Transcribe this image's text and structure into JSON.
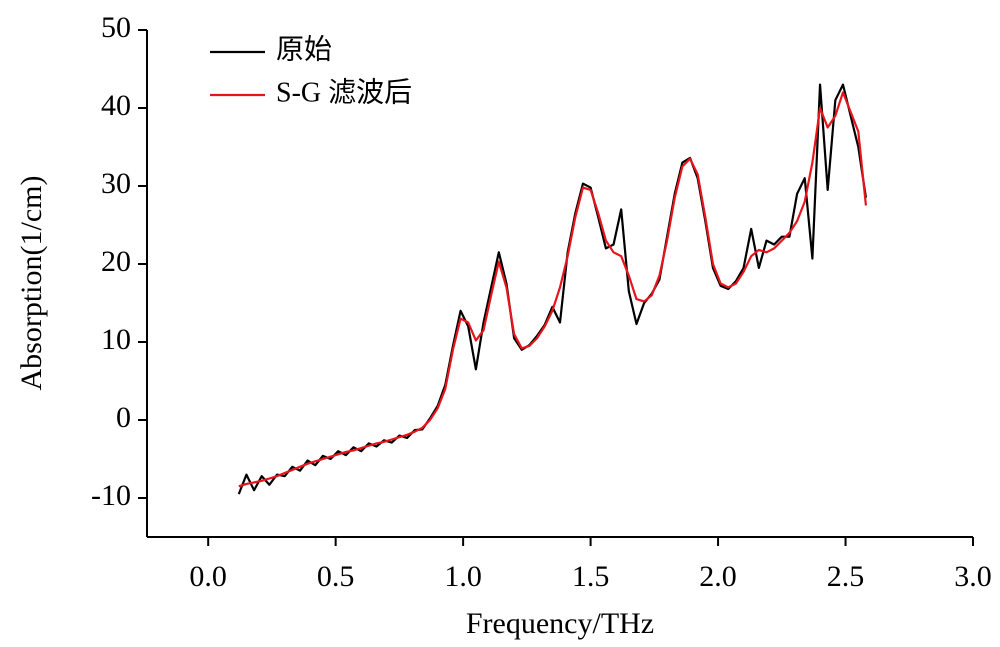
{
  "chart_data": {
    "type": "line",
    "xlabel": "Frequency/THz",
    "ylabel": "Absorption(1/cm)",
    "x": [
      0.12,
      0.15,
      0.18,
      0.21,
      0.24,
      0.27,
      0.3,
      0.33,
      0.36,
      0.39,
      0.42,
      0.45,
      0.48,
      0.51,
      0.54,
      0.57,
      0.6,
      0.63,
      0.66,
      0.69,
      0.72,
      0.75,
      0.78,
      0.81,
      0.84,
      0.87,
      0.9,
      0.93,
      0.96,
      0.99,
      1.02,
      1.05,
      1.08,
      1.11,
      1.14,
      1.17,
      1.2,
      1.23,
      1.26,
      1.29,
      1.32,
      1.35,
      1.38,
      1.41,
      1.44,
      1.47,
      1.5,
      1.53,
      1.56,
      1.59,
      1.62,
      1.65,
      1.68,
      1.71,
      1.74,
      1.77,
      1.8,
      1.83,
      1.86,
      1.89,
      1.92,
      1.95,
      1.98,
      2.01,
      2.04,
      2.07,
      2.1,
      2.13,
      2.16,
      2.19,
      2.22,
      2.25,
      2.28,
      2.31,
      2.34,
      2.37,
      2.4,
      2.43,
      2.46,
      2.49,
      2.52,
      2.55,
      2.58
    ],
    "series": [
      {
        "name": "原始",
        "color": "#000000",
        "values": [
          -9.5,
          -7.0,
          -9.0,
          -7.2,
          -8.3,
          -7.0,
          -7.2,
          -6.0,
          -6.5,
          -5.2,
          -5.8,
          -4.6,
          -5.0,
          -4.0,
          -4.5,
          -3.5,
          -4.0,
          -3.0,
          -3.4,
          -2.6,
          -2.9,
          -2.0,
          -2.3,
          -1.3,
          -1.2,
          0.2,
          1.8,
          4.5,
          9.5,
          14.0,
          12.0,
          6.5,
          12.5,
          17.0,
          21.5,
          17.5,
          10.5,
          9.0,
          9.6,
          10.8,
          12.2,
          14.5,
          12.5,
          21.5,
          26.5,
          30.3,
          29.8,
          26.0,
          22.0,
          22.5,
          27.0,
          16.5,
          12.3,
          15.0,
          16.2,
          18.0,
          23.5,
          29.0,
          33.0,
          33.6,
          31.0,
          25.5,
          19.5,
          17.2,
          16.8,
          17.8,
          19.5,
          24.5,
          19.5,
          23.0,
          22.5,
          23.5,
          23.5,
          29.0,
          31.0,
          20.7,
          43.0,
          29.5,
          41.0,
          43.0,
          39.0,
          35.0,
          28.5
        ]
      },
      {
        "name": "S-G 滤波后",
        "color": "#e8141c",
        "values": [
          -8.5,
          -8.2,
          -8.0,
          -7.8,
          -7.5,
          -7.2,
          -6.8,
          -6.4,
          -6.0,
          -5.6,
          -5.3,
          -5.0,
          -4.7,
          -4.4,
          -4.1,
          -3.9,
          -3.6,
          -3.3,
          -3.0,
          -2.8,
          -2.5,
          -2.2,
          -1.9,
          -1.5,
          -1.0,
          0.0,
          1.5,
          4.0,
          9.0,
          13.0,
          12.5,
          10.2,
          11.5,
          16.0,
          20.3,
          17.0,
          11.0,
          9.2,
          9.5,
          10.5,
          12.0,
          14.0,
          17.0,
          21.0,
          26.0,
          29.8,
          29.5,
          26.5,
          23.0,
          21.5,
          21.0,
          18.5,
          15.5,
          15.2,
          16.0,
          18.5,
          23.0,
          28.5,
          32.5,
          33.5,
          31.5,
          26.0,
          20.0,
          17.5,
          17.0,
          17.5,
          19.0,
          21.0,
          21.8,
          21.5,
          22.0,
          23.0,
          24.0,
          25.5,
          28.0,
          33.0,
          40.0,
          37.5,
          39.0,
          42.0,
          39.5,
          37.0,
          27.5
        ]
      }
    ],
    "xlim": [
      -0.24,
      3.0
    ],
    "xticks": [
      {
        "value": 0,
        "label": "0.0"
      },
      0.5,
      {
        "value": 1,
        "label": "1.0"
      },
      1.5,
      {
        "value": 2,
        "label": "2.0"
      },
      2.5,
      {
        "value": 3,
        "label": "3.0"
      }
    ],
    "ylim": [
      -15,
      50
    ],
    "yticks": [
      -10,
      0,
      10,
      20,
      30,
      40,
      50
    ],
    "legend": "upper left",
    "grid": false
  }
}
